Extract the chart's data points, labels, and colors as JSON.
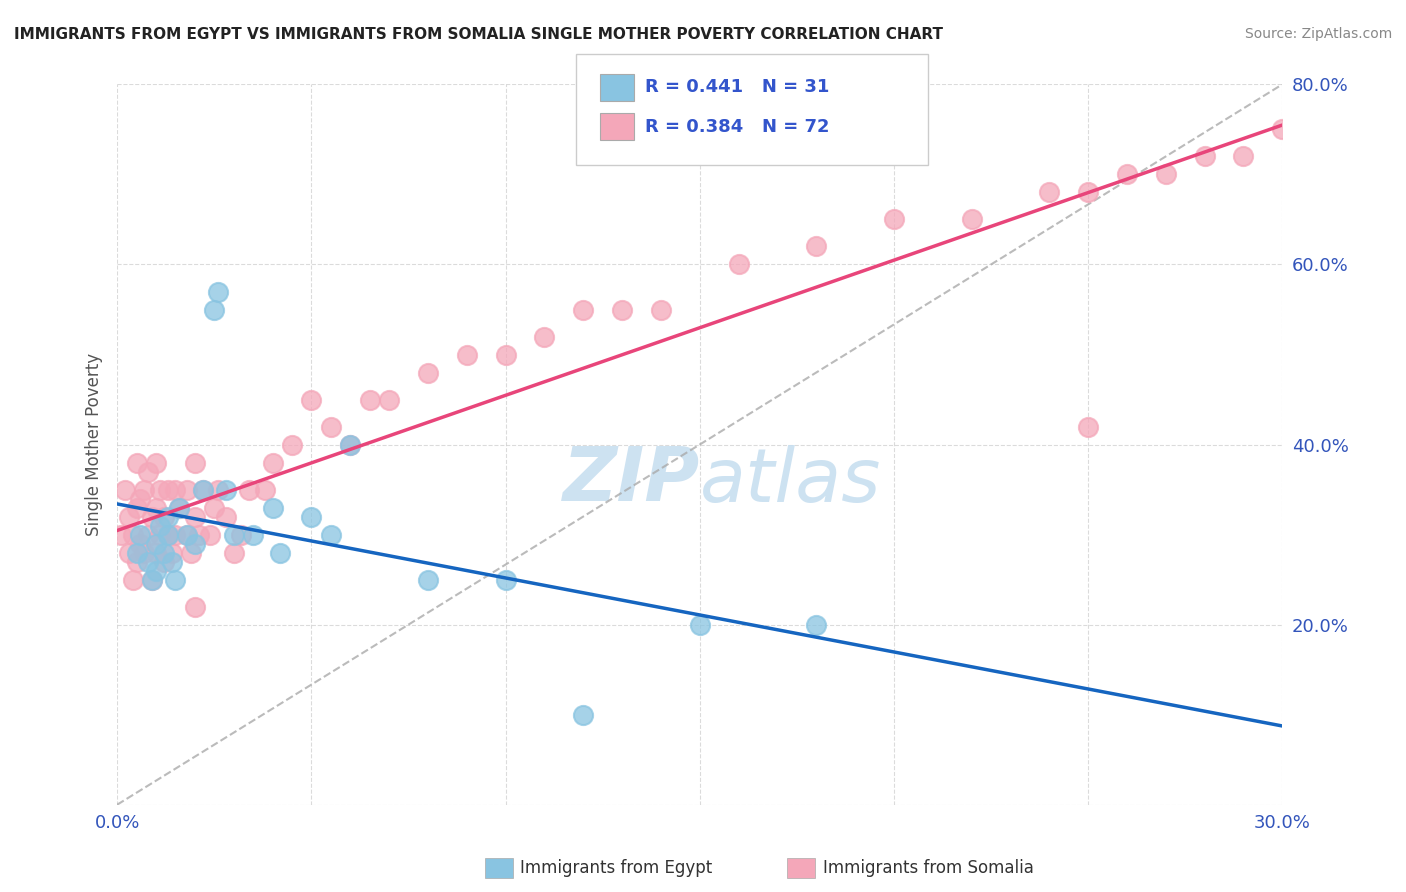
{
  "title": "IMMIGRANTS FROM EGYPT VS IMMIGRANTS FROM SOMALIA SINGLE MOTHER POVERTY CORRELATION CHART",
  "source": "Source: ZipAtlas.com",
  "ylabel": "Single Mother Poverty",
  "legend_label_1": "Immigrants from Egypt",
  "legend_label_2": "Immigrants from Somalia",
  "r1": 0.441,
  "n1": 31,
  "r2": 0.384,
  "n2": 72,
  "color_egypt": "#89C4E1",
  "color_somalia": "#F4A7B9",
  "line_color_egypt": "#1565C0",
  "line_color_somalia": "#E8457A",
  "xlim": [
    0.0,
    0.3
  ],
  "ylim": [
    0.0,
    0.8
  ],
  "x_ticks": [
    0.0,
    0.05,
    0.1,
    0.15,
    0.2,
    0.25,
    0.3
  ],
  "y_ticks": [
    0.0,
    0.2,
    0.4,
    0.6,
    0.8
  ],
  "egypt_x": [
    0.005,
    0.006,
    0.008,
    0.009,
    0.01,
    0.01,
    0.011,
    0.012,
    0.013,
    0.013,
    0.014,
    0.015,
    0.016,
    0.018,
    0.02,
    0.022,
    0.025,
    0.026,
    0.028,
    0.03,
    0.035,
    0.04,
    0.042,
    0.05,
    0.055,
    0.06,
    0.08,
    0.1,
    0.12,
    0.15,
    0.18
  ],
  "egypt_y": [
    0.28,
    0.3,
    0.27,
    0.25,
    0.26,
    0.29,
    0.31,
    0.28,
    0.3,
    0.32,
    0.27,
    0.25,
    0.33,
    0.3,
    0.29,
    0.35,
    0.55,
    0.57,
    0.35,
    0.3,
    0.3,
    0.33,
    0.28,
    0.32,
    0.3,
    0.4,
    0.25,
    0.25,
    0.1,
    0.2,
    0.2
  ],
  "somalia_x": [
    0.001,
    0.002,
    0.003,
    0.003,
    0.004,
    0.004,
    0.005,
    0.005,
    0.005,
    0.006,
    0.006,
    0.007,
    0.007,
    0.008,
    0.008,
    0.009,
    0.009,
    0.01,
    0.01,
    0.01,
    0.011,
    0.011,
    0.012,
    0.012,
    0.013,
    0.013,
    0.014,
    0.015,
    0.015,
    0.016,
    0.018,
    0.018,
    0.019,
    0.02,
    0.02,
    0.021,
    0.022,
    0.024,
    0.025,
    0.026,
    0.028,
    0.03,
    0.032,
    0.034,
    0.038,
    0.04,
    0.045,
    0.05,
    0.055,
    0.06,
    0.065,
    0.07,
    0.08,
    0.09,
    0.1,
    0.11,
    0.12,
    0.13,
    0.14,
    0.16,
    0.18,
    0.2,
    0.22,
    0.24,
    0.25,
    0.26,
    0.27,
    0.28,
    0.29,
    0.3,
    0.25,
    0.02
  ],
  "somalia_y": [
    0.3,
    0.35,
    0.28,
    0.32,
    0.25,
    0.3,
    0.27,
    0.33,
    0.38,
    0.29,
    0.34,
    0.28,
    0.35,
    0.3,
    0.37,
    0.25,
    0.32,
    0.28,
    0.33,
    0.38,
    0.3,
    0.35,
    0.27,
    0.32,
    0.3,
    0.35,
    0.28,
    0.3,
    0.35,
    0.33,
    0.3,
    0.35,
    0.28,
    0.32,
    0.38,
    0.3,
    0.35,
    0.3,
    0.33,
    0.35,
    0.32,
    0.28,
    0.3,
    0.35,
    0.35,
    0.38,
    0.4,
    0.45,
    0.42,
    0.4,
    0.45,
    0.45,
    0.48,
    0.5,
    0.5,
    0.52,
    0.55,
    0.55,
    0.55,
    0.6,
    0.62,
    0.65,
    0.65,
    0.68,
    0.68,
    0.7,
    0.7,
    0.72,
    0.72,
    0.75,
    0.42,
    0.22
  ]
}
